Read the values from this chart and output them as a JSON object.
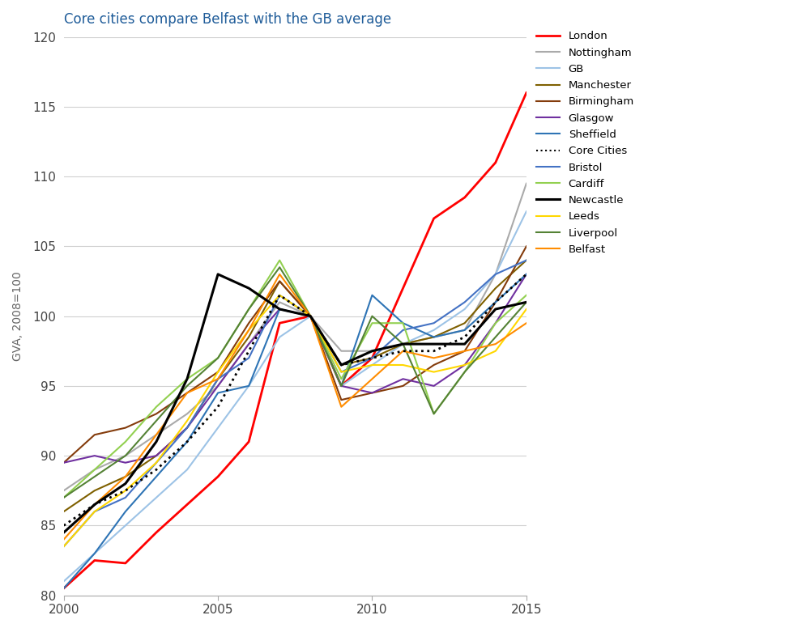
{
  "title": "Core cities compare Belfast with the GB average",
  "title_color": "#1F5C99",
  "ylabel": "GVA, 2008=100",
  "xlabel": "",
  "xlim": [
    2000,
    2015
  ],
  "ylim": [
    80,
    120
  ],
  "yticks": [
    80,
    85,
    90,
    95,
    100,
    105,
    110,
    115,
    120
  ],
  "xticks": [
    2000,
    2005,
    2010,
    2015
  ],
  "years": [
    2000,
    2001,
    2002,
    2003,
    2004,
    2005,
    2006,
    2007,
    2008,
    2009,
    2010,
    2011,
    2012,
    2013,
    2014,
    2015
  ],
  "series": {
    "London": {
      "color": "#FF0000",
      "linestyle": "-",
      "linewidth": 2.0,
      "values": [
        80.5,
        82.5,
        82.3,
        84.5,
        86.5,
        88.5,
        91.0,
        99.5,
        100.0,
        95.0,
        97.0,
        102.0,
        107.0,
        108.5,
        111.0,
        116.0
      ]
    },
    "Nottingham": {
      "color": "#AAAAAA",
      "linestyle": "-",
      "linewidth": 1.5,
      "values": [
        87.5,
        89.0,
        90.0,
        91.5,
        93.0,
        95.0,
        98.0,
        101.0,
        100.0,
        97.5,
        97.5,
        98.0,
        98.5,
        99.0,
        103.0,
        109.5
      ]
    },
    "GB": {
      "color": "#9DC3E6",
      "linestyle": "-",
      "linewidth": 1.5,
      "values": [
        81.0,
        83.0,
        85.0,
        87.0,
        89.0,
        92.0,
        95.0,
        98.5,
        100.0,
        95.0,
        96.5,
        98.0,
        99.0,
        100.5,
        103.0,
        107.5
      ]
    },
    "Manchester": {
      "color": "#7F6000",
      "linestyle": "-",
      "linewidth": 1.5,
      "values": [
        86.0,
        87.5,
        88.5,
        90.0,
        92.0,
        95.5,
        98.5,
        102.5,
        100.0,
        96.5,
        97.0,
        98.0,
        98.5,
        99.5,
        102.0,
        104.0
      ]
    },
    "Birmingham": {
      "color": "#843C0C",
      "linestyle": "-",
      "linewidth": 1.5,
      "values": [
        89.5,
        91.5,
        92.0,
        93.0,
        94.5,
        96.0,
        99.5,
        102.5,
        100.0,
        94.0,
        94.5,
        95.0,
        96.5,
        97.5,
        101.0,
        105.0
      ]
    },
    "Glasgow": {
      "color": "#7030A0",
      "linestyle": "-",
      "linewidth": 1.5,
      "values": [
        89.5,
        90.0,
        89.5,
        90.0,
        92.0,
        95.0,
        98.0,
        100.5,
        100.0,
        95.0,
        94.5,
        95.5,
        95.0,
        96.5,
        99.5,
        103.0
      ]
    },
    "Sheffield": {
      "color": "#2E74B5",
      "linestyle": "-",
      "linewidth": 1.5,
      "values": [
        80.5,
        83.0,
        86.0,
        88.5,
        91.0,
        94.5,
        95.0,
        100.5,
        100.0,
        95.0,
        101.5,
        99.5,
        98.5,
        99.0,
        101.0,
        103.0
      ]
    },
    "Core Cities": {
      "color": "#000000",
      "linestyle": ":",
      "linewidth": 2.0,
      "values": [
        85.0,
        86.5,
        87.5,
        89.0,
        91.0,
        93.5,
        97.5,
        101.5,
        100.0,
        96.5,
        97.0,
        97.5,
        97.5,
        98.5,
        101.0,
        103.0
      ]
    },
    "Bristol": {
      "color": "#4472C4",
      "linestyle": "-",
      "linewidth": 1.5,
      "values": [
        83.5,
        86.0,
        87.0,
        89.5,
        92.0,
        95.5,
        97.0,
        101.5,
        100.0,
        96.0,
        97.0,
        99.0,
        99.5,
        101.0,
        103.0,
        104.0
      ]
    },
    "Cardiff": {
      "color": "#92D050",
      "linestyle": "-",
      "linewidth": 1.5,
      "values": [
        87.0,
        89.0,
        91.0,
        93.5,
        95.5,
        97.0,
        100.5,
        104.0,
        100.0,
        95.5,
        99.5,
        99.5,
        93.0,
        96.0,
        99.5,
        101.5
      ]
    },
    "Newcastle": {
      "color": "#000000",
      "linestyle": "-",
      "linewidth": 2.2,
      "values": [
        84.5,
        86.5,
        88.0,
        91.0,
        95.5,
        103.0,
        102.0,
        100.5,
        100.0,
        96.5,
        97.5,
        98.0,
        98.0,
        98.0,
        100.5,
        101.0
      ]
    },
    "Leeds": {
      "color": "#FFD700",
      "linestyle": "-",
      "linewidth": 1.5,
      "values": [
        83.5,
        86.0,
        87.5,
        89.5,
        92.5,
        96.0,
        99.0,
        101.5,
        100.0,
        96.0,
        96.5,
        96.5,
        96.0,
        96.5,
        97.5,
        100.5
      ]
    },
    "Liverpool": {
      "color": "#548235",
      "linestyle": "-",
      "linewidth": 1.5,
      "values": [
        87.0,
        88.5,
        90.0,
        92.5,
        95.0,
        97.0,
        100.5,
        103.5,
        100.0,
        95.0,
        100.0,
        98.0,
        93.0,
        96.0,
        98.5,
        101.0
      ]
    },
    "Belfast": {
      "color": "#FF8C00",
      "linestyle": "-",
      "linewidth": 1.5,
      "values": [
        84.0,
        86.5,
        88.5,
        91.5,
        94.5,
        95.5,
        99.0,
        103.0,
        100.0,
        93.5,
        95.5,
        97.5,
        97.0,
        97.5,
        98.0,
        99.5
      ]
    }
  },
  "background_color": "#FFFFFF",
  "grid_color": "#D0D0D0",
  "fig_background": "#FFFFFF"
}
